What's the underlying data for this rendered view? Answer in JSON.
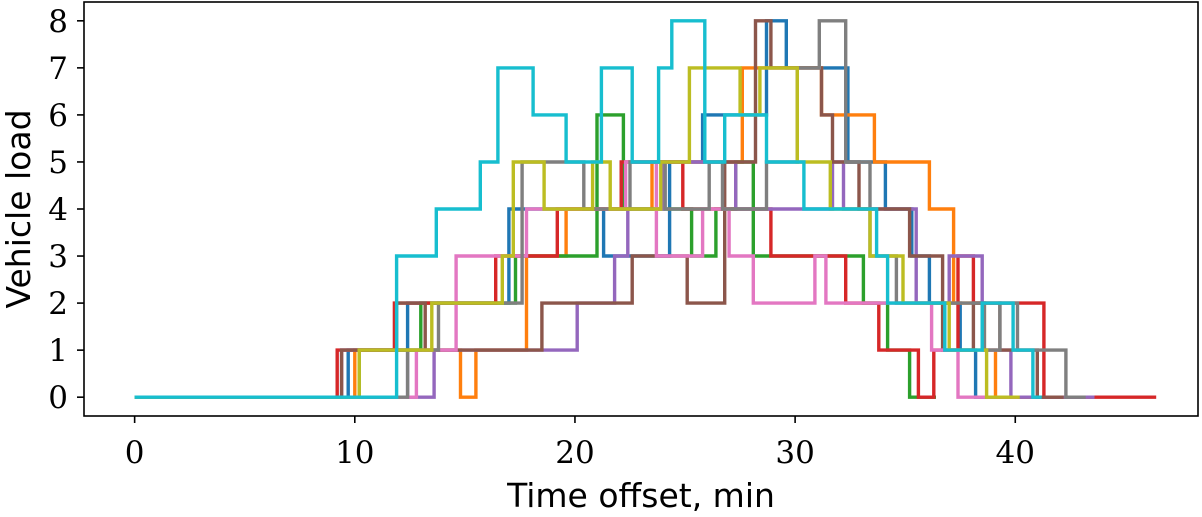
{
  "chart_data": {
    "type": "line",
    "step": true,
    "title": "",
    "xlabel": "Time offset, min",
    "ylabel": "Vehicle load",
    "xlim": [
      -2.3,
      48.3
    ],
    "ylim": [
      -0.4,
      8.4
    ],
    "xticks": [
      0,
      10,
      20,
      30,
      40
    ],
    "yticks": [
      0,
      1,
      2,
      3,
      4,
      5,
      6,
      7,
      8
    ],
    "grid": false,
    "legend": "none",
    "series": [
      {
        "color": "#1f77b4",
        "points": [
          [
            0,
            0
          ],
          [
            9.7,
            0
          ],
          [
            9.7,
            1
          ],
          [
            12.4,
            1
          ],
          [
            12.4,
            2
          ],
          [
            17.0,
            2
          ],
          [
            17.0,
            4
          ],
          [
            21.3,
            4
          ],
          [
            21.3,
            3
          ],
          [
            24.3,
            3
          ],
          [
            24.3,
            5
          ],
          [
            25.8,
            5
          ],
          [
            25.8,
            6
          ],
          [
            28.7,
            6
          ],
          [
            28.7,
            8
          ],
          [
            29.6,
            8
          ],
          [
            29.6,
            7
          ],
          [
            32.4,
            7
          ],
          [
            32.4,
            5
          ],
          [
            34.1,
            5
          ],
          [
            34.1,
            4
          ],
          [
            35.3,
            4
          ],
          [
            35.3,
            3
          ],
          [
            36.1,
            3
          ],
          [
            36.1,
            2
          ],
          [
            37.5,
            2
          ],
          [
            37.5,
            1
          ],
          [
            38.2,
            1
          ],
          [
            38.2,
            0
          ],
          [
            41.3,
            0
          ]
        ]
      },
      {
        "color": "#ff7f0e",
        "points": [
          [
            0,
            0
          ],
          [
            10.0,
            0
          ],
          [
            10.0,
            1
          ],
          [
            14.8,
            1
          ],
          [
            14.8,
            0
          ],
          [
            15.5,
            0
          ],
          [
            15.5,
            1
          ],
          [
            17.8,
            1
          ],
          [
            17.8,
            3
          ],
          [
            19.6,
            3
          ],
          [
            19.6,
            4
          ],
          [
            23.5,
            4
          ],
          [
            23.5,
            5
          ],
          [
            27.6,
            5
          ],
          [
            27.6,
            7
          ],
          [
            31.2,
            7
          ],
          [
            31.2,
            6
          ],
          [
            33.6,
            6
          ],
          [
            33.6,
            5
          ],
          [
            36.1,
            5
          ],
          [
            36.1,
            4
          ],
          [
            37.2,
            4
          ],
          [
            37.2,
            2
          ],
          [
            38.6,
            2
          ],
          [
            38.6,
            1
          ],
          [
            39.1,
            1
          ],
          [
            39.1,
            0
          ],
          [
            41.0,
            0
          ]
        ]
      },
      {
        "color": "#2ca02c",
        "points": [
          [
            0,
            0
          ],
          [
            10.2,
            0
          ],
          [
            10.2,
            1
          ],
          [
            13.0,
            1
          ],
          [
            13.0,
            2
          ],
          [
            17.3,
            2
          ],
          [
            17.3,
            3
          ],
          [
            21.0,
            3
          ],
          [
            21.0,
            6
          ],
          [
            22.2,
            6
          ],
          [
            22.2,
            4
          ],
          [
            25.3,
            4
          ],
          [
            25.3,
            3
          ],
          [
            26.4,
            3
          ],
          [
            26.4,
            4
          ],
          [
            27.3,
            4
          ],
          [
            27.3,
            5
          ],
          [
            28.1,
            5
          ],
          [
            28.1,
            3
          ],
          [
            33.1,
            3
          ],
          [
            33.1,
            2
          ],
          [
            34.2,
            2
          ],
          [
            34.2,
            1
          ],
          [
            35.2,
            1
          ],
          [
            35.2,
            0
          ],
          [
            36.4,
            0
          ]
        ]
      },
      {
        "color": "#d62728",
        "points": [
          [
            0,
            0
          ],
          [
            9.2,
            0
          ],
          [
            9.2,
            1
          ],
          [
            11.8,
            1
          ],
          [
            11.8,
            2
          ],
          [
            16.4,
            2
          ],
          [
            16.4,
            3
          ],
          [
            19.2,
            3
          ],
          [
            19.2,
            4
          ],
          [
            22.1,
            4
          ],
          [
            22.1,
            5
          ],
          [
            24.9,
            5
          ],
          [
            24.9,
            4
          ],
          [
            28.9,
            4
          ],
          [
            28.9,
            3
          ],
          [
            32.3,
            3
          ],
          [
            32.3,
            2
          ],
          [
            33.8,
            2
          ],
          [
            33.8,
            1
          ],
          [
            35.6,
            1
          ],
          [
            35.6,
            0
          ],
          [
            36.3,
            0
          ],
          [
            36.3,
            1
          ],
          [
            37.4,
            1
          ],
          [
            37.4,
            3
          ],
          [
            38.1,
            3
          ],
          [
            38.1,
            2
          ],
          [
            41.3,
            2
          ],
          [
            41.3,
            0
          ],
          [
            46.4,
            0
          ]
        ]
      },
      {
        "color": "#9467bd",
        "points": [
          [
            0,
            0
          ],
          [
            9.4,
            0
          ],
          [
            9.4,
            1
          ],
          [
            12.4,
            1
          ],
          [
            12.4,
            0
          ],
          [
            13.6,
            0
          ],
          [
            13.6,
            1
          ],
          [
            20.1,
            1
          ],
          [
            20.1,
            2
          ],
          [
            21.8,
            2
          ],
          [
            21.8,
            3
          ],
          [
            22.4,
            3
          ],
          [
            22.4,
            4
          ],
          [
            24.0,
            4
          ],
          [
            24.0,
            5
          ],
          [
            27.3,
            5
          ],
          [
            27.3,
            4
          ],
          [
            31.7,
            4
          ],
          [
            31.7,
            5
          ],
          [
            32.2,
            5
          ],
          [
            32.2,
            4
          ],
          [
            35.5,
            4
          ],
          [
            35.5,
            2
          ],
          [
            37.0,
            2
          ],
          [
            37.0,
            3
          ],
          [
            38.5,
            3
          ],
          [
            38.5,
            1
          ],
          [
            39.8,
            1
          ],
          [
            39.8,
            0
          ],
          [
            43.6,
            0
          ]
        ]
      },
      {
        "color": "#8c564b",
        "points": [
          [
            0,
            0
          ],
          [
            9.4,
            0
          ],
          [
            9.4,
            1
          ],
          [
            11.9,
            1
          ],
          [
            11.9,
            2
          ],
          [
            13.2,
            2
          ],
          [
            13.2,
            1
          ],
          [
            18.5,
            1
          ],
          [
            18.5,
            2
          ],
          [
            22.6,
            2
          ],
          [
            22.6,
            3
          ],
          [
            25.1,
            3
          ],
          [
            25.1,
            2
          ],
          [
            26.8,
            2
          ],
          [
            26.8,
            5
          ],
          [
            28.2,
            5
          ],
          [
            28.2,
            8
          ],
          [
            28.9,
            8
          ],
          [
            28.9,
            7
          ],
          [
            31.2,
            7
          ],
          [
            31.2,
            6
          ],
          [
            31.7,
            6
          ],
          [
            31.7,
            5
          ],
          [
            32.9,
            5
          ],
          [
            32.9,
            4
          ],
          [
            35.2,
            4
          ],
          [
            35.2,
            3
          ],
          [
            36.7,
            3
          ],
          [
            36.7,
            1
          ],
          [
            38.1,
            1
          ],
          [
            38.1,
            2
          ],
          [
            39.3,
            2
          ],
          [
            39.3,
            1
          ],
          [
            41.0,
            1
          ],
          [
            41.0,
            0
          ],
          [
            42.2,
            0
          ]
        ]
      },
      {
        "color": "#e377c2",
        "points": [
          [
            0,
            0
          ],
          [
            12.8,
            0
          ],
          [
            12.8,
            1
          ],
          [
            14.6,
            1
          ],
          [
            14.6,
            3
          ],
          [
            17.8,
            3
          ],
          [
            17.8,
            4
          ],
          [
            22.3,
            4
          ],
          [
            22.3,
            5
          ],
          [
            23.7,
            5
          ],
          [
            23.7,
            3
          ],
          [
            25.8,
            3
          ],
          [
            25.8,
            4
          ],
          [
            27.0,
            4
          ],
          [
            27.0,
            3
          ],
          [
            28.1,
            3
          ],
          [
            28.1,
            2
          ],
          [
            30.9,
            2
          ],
          [
            30.9,
            3
          ],
          [
            31.4,
            3
          ],
          [
            31.4,
            2
          ],
          [
            36.2,
            2
          ],
          [
            36.2,
            1
          ],
          [
            37.4,
            1
          ],
          [
            37.4,
            0
          ],
          [
            40.1,
            0
          ]
        ]
      },
      {
        "color": "#7f7f7f",
        "points": [
          [
            0,
            0
          ],
          [
            12.4,
            0
          ],
          [
            12.4,
            1
          ],
          [
            13.8,
            1
          ],
          [
            13.8,
            2
          ],
          [
            17.6,
            2
          ],
          [
            17.6,
            5
          ],
          [
            20.4,
            5
          ],
          [
            20.4,
            4
          ],
          [
            22.5,
            4
          ],
          [
            22.5,
            5
          ],
          [
            24.1,
            5
          ],
          [
            24.1,
            4
          ],
          [
            26.1,
            4
          ],
          [
            26.1,
            5
          ],
          [
            26.7,
            5
          ],
          [
            26.7,
            4
          ],
          [
            28.7,
            4
          ],
          [
            28.7,
            5
          ],
          [
            30.1,
            5
          ],
          [
            30.1,
            7
          ],
          [
            31.1,
            7
          ],
          [
            31.1,
            8
          ],
          [
            32.3,
            8
          ],
          [
            32.3,
            5
          ],
          [
            33.4,
            5
          ],
          [
            33.4,
            3
          ],
          [
            34.6,
            3
          ],
          [
            34.6,
            2
          ],
          [
            38.6,
            2
          ],
          [
            38.6,
            1
          ],
          [
            39.3,
            1
          ],
          [
            39.3,
            2
          ],
          [
            40.1,
            2
          ],
          [
            40.1,
            1
          ],
          [
            42.3,
            1
          ],
          [
            42.3,
            0
          ],
          [
            43.2,
            0
          ]
        ]
      },
      {
        "color": "#bcbd22",
        "points": [
          [
            0,
            0
          ],
          [
            10.2,
            0
          ],
          [
            10.2,
            1
          ],
          [
            13.5,
            1
          ],
          [
            13.5,
            2
          ],
          [
            16.7,
            2
          ],
          [
            16.7,
            3
          ],
          [
            17.2,
            3
          ],
          [
            17.2,
            5
          ],
          [
            18.6,
            5
          ],
          [
            18.6,
            4
          ],
          [
            20.8,
            4
          ],
          [
            20.8,
            5
          ],
          [
            21.6,
            5
          ],
          [
            21.6,
            4
          ],
          [
            23.9,
            4
          ],
          [
            23.9,
            5
          ],
          [
            25.2,
            5
          ],
          [
            25.2,
            7
          ],
          [
            27.5,
            7
          ],
          [
            27.5,
            6
          ],
          [
            28.4,
            6
          ],
          [
            28.4,
            7
          ],
          [
            30.1,
            7
          ],
          [
            30.1,
            5
          ],
          [
            31.6,
            5
          ],
          [
            31.6,
            4
          ],
          [
            33.4,
            4
          ],
          [
            33.4,
            3
          ],
          [
            34.9,
            3
          ],
          [
            34.9,
            2
          ],
          [
            37.0,
            2
          ],
          [
            37.0,
            1
          ],
          [
            38.7,
            1
          ],
          [
            38.7,
            0
          ],
          [
            40.2,
            0
          ]
        ]
      },
      {
        "color": "#17becf",
        "points": [
          [
            0,
            0
          ],
          [
            11.9,
            0
          ],
          [
            11.9,
            3
          ],
          [
            13.7,
            3
          ],
          [
            13.7,
            4
          ],
          [
            15.7,
            4
          ],
          [
            15.7,
            5
          ],
          [
            16.5,
            5
          ],
          [
            16.5,
            7
          ],
          [
            18.1,
            7
          ],
          [
            18.1,
            6
          ],
          [
            19.6,
            6
          ],
          [
            19.6,
            5
          ],
          [
            21.2,
            5
          ],
          [
            21.2,
            7
          ],
          [
            22.6,
            7
          ],
          [
            22.6,
            5
          ],
          [
            23.8,
            5
          ],
          [
            23.8,
            7
          ],
          [
            24.4,
            7
          ],
          [
            24.4,
            8
          ],
          [
            25.9,
            8
          ],
          [
            25.9,
            5
          ],
          [
            26.8,
            5
          ],
          [
            26.8,
            6
          ],
          [
            28.7,
            6
          ],
          [
            28.7,
            5
          ],
          [
            30.4,
            5
          ],
          [
            30.4,
            4
          ],
          [
            33.7,
            4
          ],
          [
            33.7,
            3
          ],
          [
            34.2,
            3
          ],
          [
            34.2,
            2
          ],
          [
            36.8,
            2
          ],
          [
            36.8,
            1
          ],
          [
            38.5,
            1
          ],
          [
            38.5,
            2
          ],
          [
            39.9,
            2
          ],
          [
            39.9,
            1
          ],
          [
            40.8,
            1
          ],
          [
            40.8,
            0
          ],
          [
            41.2,
            0
          ]
        ]
      }
    ]
  }
}
